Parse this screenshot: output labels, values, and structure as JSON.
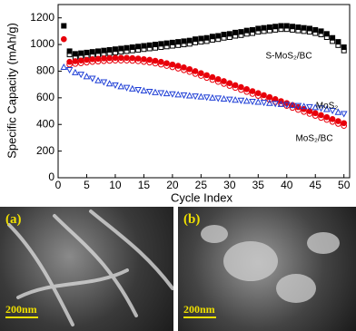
{
  "chart_data": {
    "type": "scatter",
    "xlabel": "Cycle Index",
    "ylabel": "Specific Capacity (mAh/g)",
    "xlim": [
      0,
      51
    ],
    "xticks": [
      0,
      5,
      10,
      15,
      20,
      25,
      30,
      35,
      40,
      45,
      50
    ],
    "ylim": [
      0,
      1300
    ],
    "yticks": [
      0,
      200,
      400,
      600,
      800,
      1000,
      1200
    ],
    "x": [
      1,
      2,
      3,
      4,
      5,
      6,
      7,
      8,
      9,
      10,
      11,
      12,
      13,
      14,
      15,
      16,
      17,
      18,
      19,
      20,
      21,
      22,
      23,
      24,
      25,
      26,
      27,
      28,
      29,
      30,
      31,
      32,
      33,
      34,
      35,
      36,
      37,
      38,
      39,
      40,
      41,
      42,
      43,
      44,
      45,
      46,
      47,
      48,
      49,
      50
    ],
    "series": [
      {
        "name": "S-MoS₂/BC",
        "color": "#000000",
        "marker": "square",
        "filled": true,
        "values": [
          1140,
          950,
          930,
          935,
          940,
          945,
          950,
          955,
          960,
          965,
          970,
          975,
          980,
          985,
          990,
          995,
          1000,
          1005,
          1010,
          1015,
          1020,
          1025,
          1030,
          1040,
          1045,
          1050,
          1060,
          1065,
          1075,
          1080,
          1090,
          1095,
          1105,
          1110,
          1120,
          1125,
          1130,
          1135,
          1140,
          1140,
          1135,
          1130,
          1125,
          1120,
          1110,
          1100,
          1080,
          1050,
          1020,
          980
        ]
      },
      {
        "color": "#000000",
        "marker": "square",
        "filled": false,
        "values": [
          null,
          925,
          905,
          910,
          915,
          920,
          925,
          930,
          935,
          940,
          945,
          950,
          955,
          960,
          965,
          970,
          975,
          980,
          985,
          990,
          995,
          1000,
          1005,
          1015,
          1020,
          1025,
          1035,
          1040,
          1050,
          1055,
          1065,
          1070,
          1080,
          1085,
          1095,
          1100,
          1105,
          1110,
          1115,
          1115,
          1110,
          1105,
          1100,
          1095,
          1085,
          1075,
          1055,
          1025,
          995,
          955
        ]
      },
      {
        "name": "MoS₂/BC",
        "color": "#e8000b",
        "marker": "circle",
        "filled": true,
        "values": [
          1040,
          870,
          875,
          880,
          885,
          890,
          893,
          896,
          898,
          900,
          900,
          900,
          898,
          895,
          890,
          885,
          878,
          870,
          860,
          850,
          840,
          828,
          815,
          800,
          785,
          770,
          755,
          740,
          725,
          710,
          695,
          680,
          665,
          650,
          635,
          620,
          605,
          590,
          575,
          560,
          545,
          530,
          515,
          500,
          485,
          470,
          455,
          440,
          425,
          410
        ]
      },
      {
        "color": "#e8000b",
        "marker": "circle",
        "filled": false,
        "values": [
          null,
          850,
          855,
          860,
          865,
          870,
          873,
          876,
          878,
          880,
          880,
          880,
          878,
          875,
          870,
          865,
          858,
          850,
          840,
          830,
          820,
          808,
          795,
          780,
          765,
          750,
          735,
          720,
          705,
          690,
          675,
          660,
          645,
          630,
          615,
          600,
          585,
          570,
          555,
          540,
          525,
          510,
          495,
          480,
          465,
          450,
          435,
          420,
          405,
          390
        ]
      },
      {
        "name": "MoS₂",
        "color": "#1f3fd6",
        "marker": "triangle",
        "filled": false,
        "values": [
          830,
          810,
          790,
          775,
          760,
          745,
          730,
          718,
          706,
          695,
          685,
          676,
          668,
          660,
          653,
          647,
          641,
          636,
          632,
          628,
          624,
          620,
          616,
          612,
          608,
          604,
          600,
          596,
          592,
          588,
          584,
          580,
          576,
          572,
          568,
          564,
          560,
          556,
          552,
          548,
          544,
          540,
          536,
          532,
          528,
          522,
          514,
          504,
          492,
          480
        ]
      }
    ]
  },
  "panels": [
    {
      "label": "(a)",
      "scale": "200nm"
    },
    {
      "label": "(b)",
      "scale": "200nm"
    }
  ]
}
